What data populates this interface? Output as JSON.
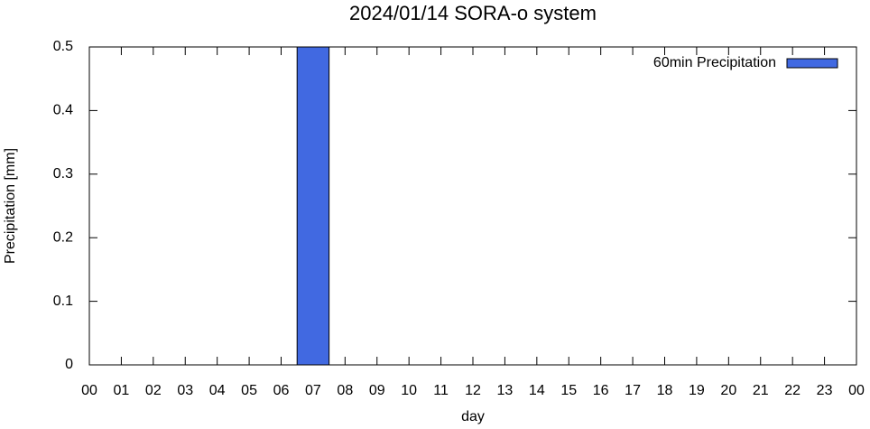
{
  "chart_data": {
    "type": "bar",
    "title": "2024/01/14 SORA-o system",
    "xlabel": "day",
    "ylabel": "Precipitation [mm]",
    "x": [
      0,
      1,
      2,
      3,
      4,
      5,
      6,
      7,
      8,
      9,
      10,
      11,
      12,
      13,
      14,
      15,
      16,
      17,
      18,
      19,
      20,
      21,
      22,
      23
    ],
    "series": [
      {
        "name": "60min Precipitation",
        "color": "#4169e1",
        "values": [
          0,
          0,
          0,
          0,
          0,
          0,
          0,
          0.5,
          0,
          0,
          0,
          0,
          0,
          0,
          0,
          0,
          0,
          0,
          0,
          0,
          0,
          0,
          0,
          0
        ]
      }
    ],
    "xlim": [
      0,
      24
    ],
    "xticks": [
      {
        "value": 0,
        "label": "00"
      },
      {
        "value": 1,
        "label": "01"
      },
      {
        "value": 2,
        "label": "02"
      },
      {
        "value": 3,
        "label": "03"
      },
      {
        "value": 4,
        "label": "04"
      },
      {
        "value": 5,
        "label": "05"
      },
      {
        "value": 6,
        "label": "06"
      },
      {
        "value": 7,
        "label": "07"
      },
      {
        "value": 8,
        "label": "08"
      },
      {
        "value": 9,
        "label": "09"
      },
      {
        "value": 10,
        "label": "10"
      },
      {
        "value": 11,
        "label": "11"
      },
      {
        "value": 12,
        "label": "12"
      },
      {
        "value": 13,
        "label": "13"
      },
      {
        "value": 14,
        "label": "14"
      },
      {
        "value": 15,
        "label": "15"
      },
      {
        "value": 16,
        "label": "16"
      },
      {
        "value": 17,
        "label": "17"
      },
      {
        "value": 18,
        "label": "18"
      },
      {
        "value": 19,
        "label": "19"
      },
      {
        "value": 20,
        "label": "20"
      },
      {
        "value": 21,
        "label": "21"
      },
      {
        "value": 22,
        "label": "22"
      },
      {
        "value": 23,
        "label": "23"
      },
      {
        "value": 24,
        "label": "00"
      }
    ],
    "ylim": [
      0,
      0.5
    ],
    "yticks": [
      0,
      0.1,
      0.2,
      0.3,
      0.4,
      0.5
    ],
    "legend": "top-right"
  }
}
